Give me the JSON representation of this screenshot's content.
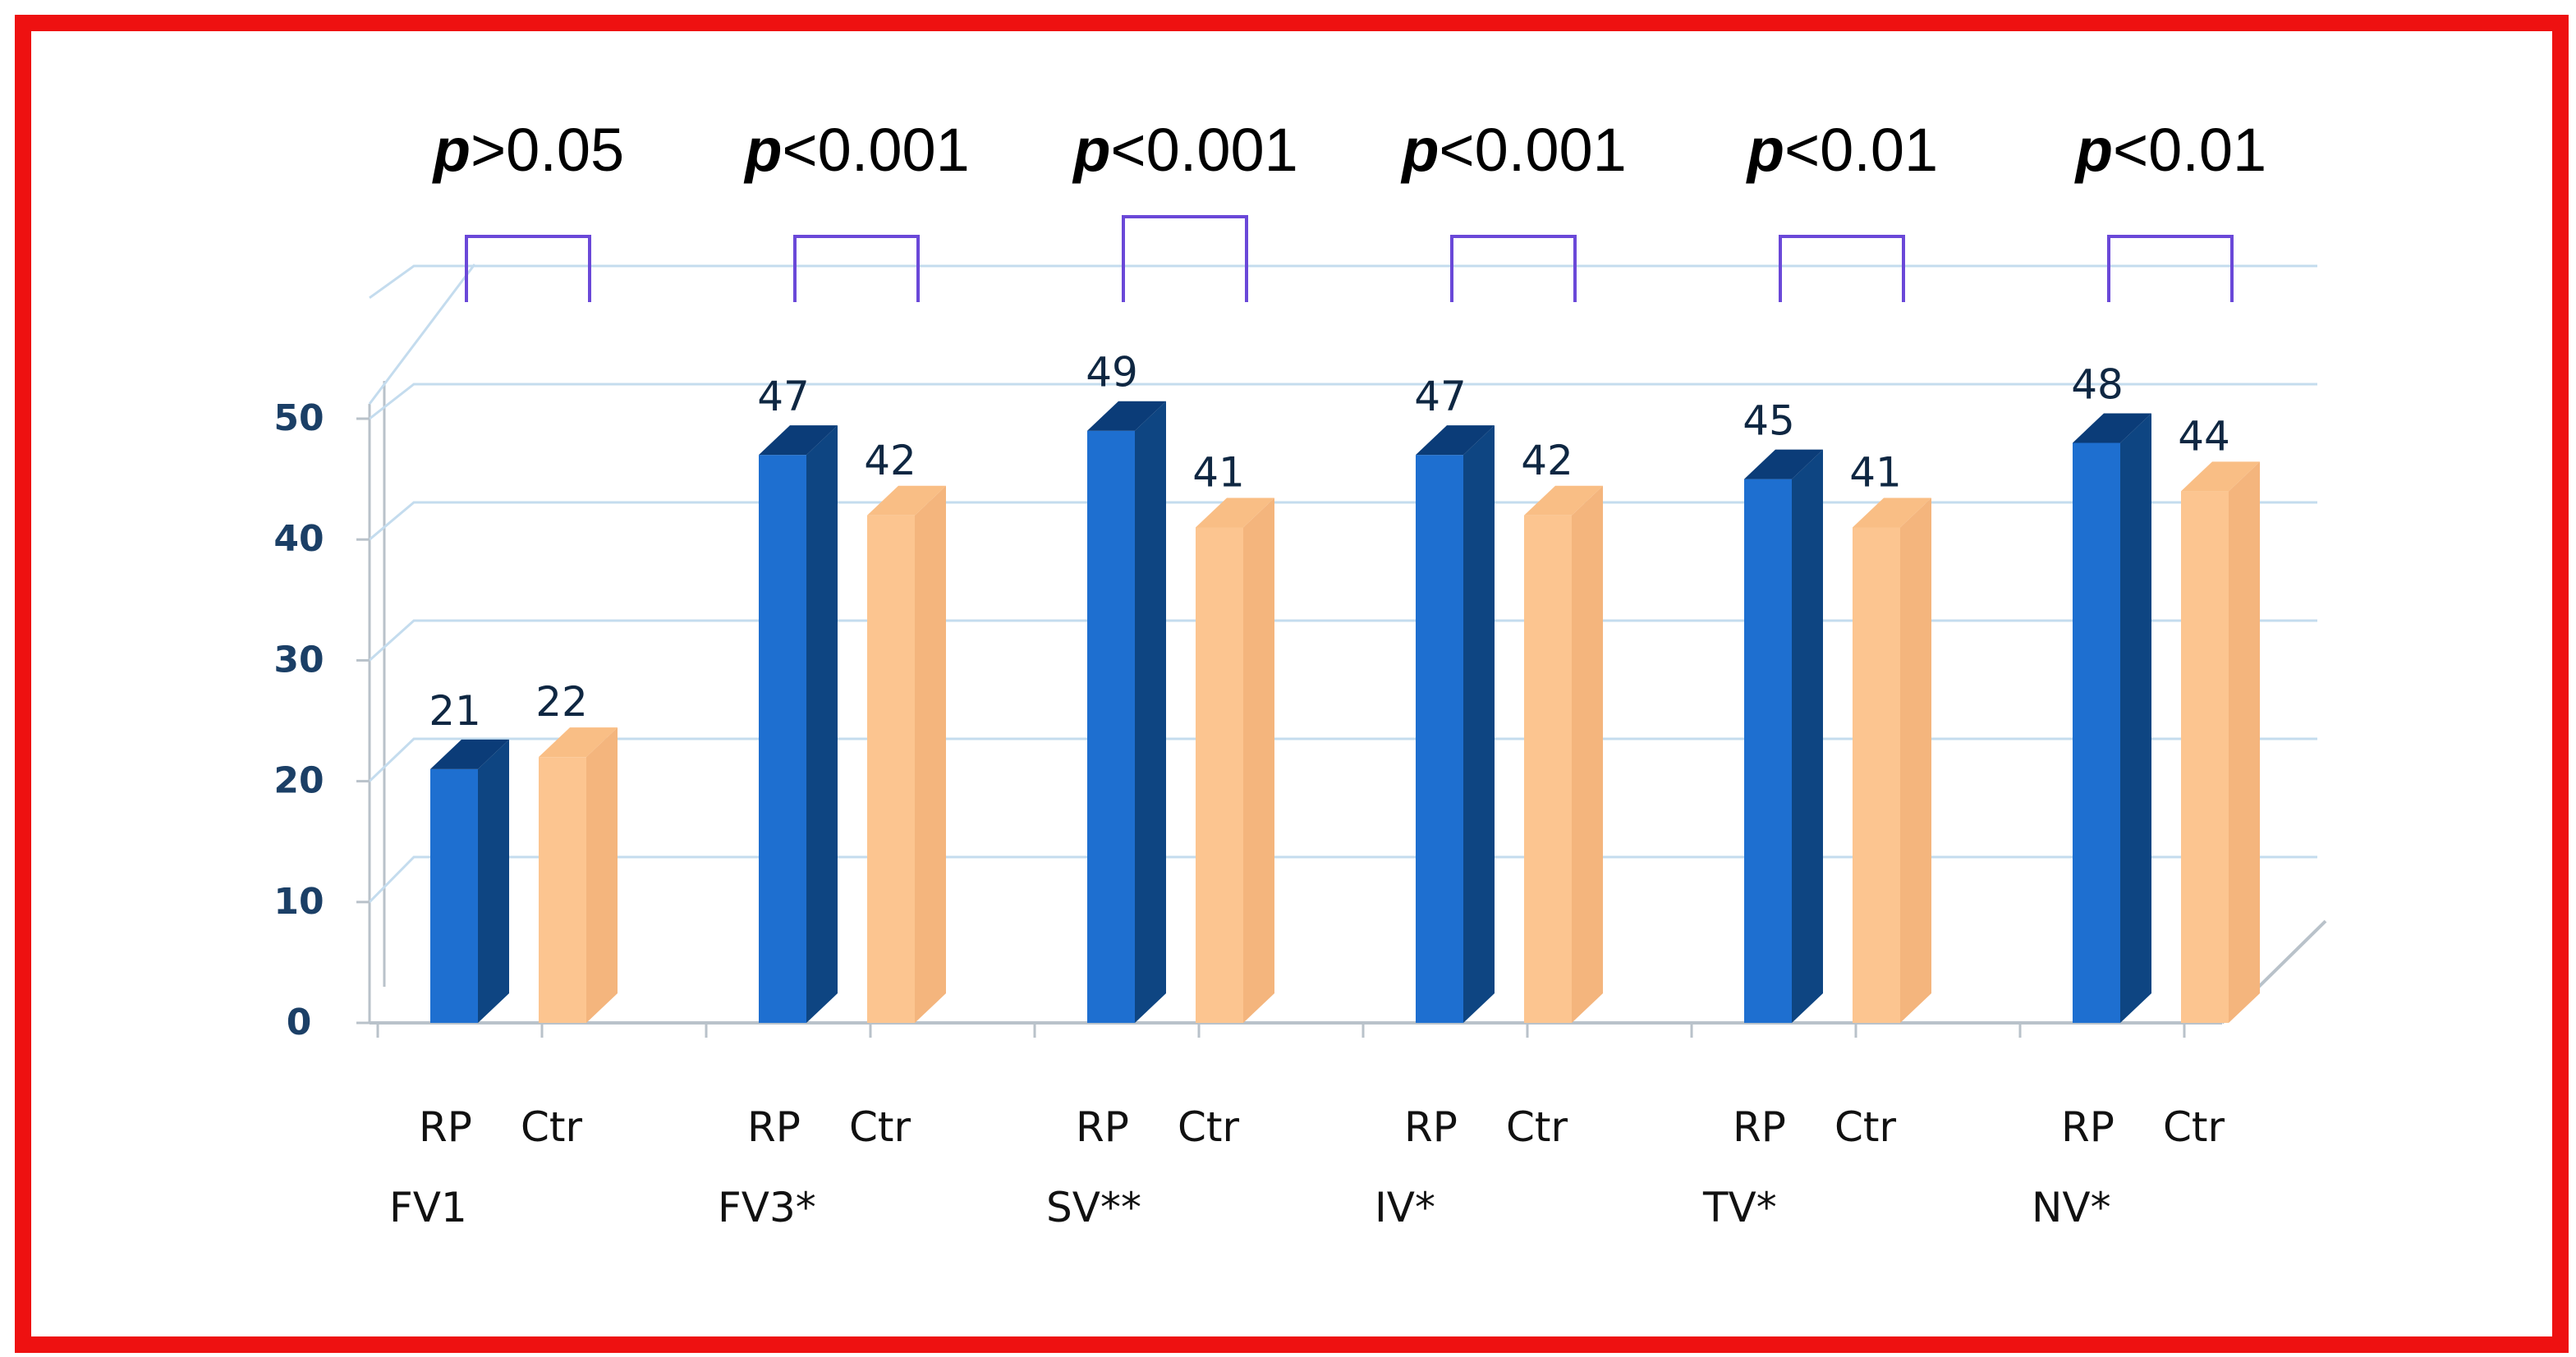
{
  "colors": {
    "frame": "#ee1111",
    "rp_front": "#1e6fd0",
    "rp_side": "#0e4582",
    "rp_top": "#0b3c78",
    "ctr_front": "#fcc590",
    "ctr_side": "#f4b57d",
    "ctr_top": "#f9be85",
    "bracket": "#6a48d8",
    "grid": "#c4dcee",
    "axis": "#b9c2ca",
    "tick_label": "#1b3f66",
    "value_label": "#0f2742"
  },
  "chart_data": {
    "type": "bar",
    "title": "",
    "xlabel": "",
    "ylabel": "",
    "ylim": [
      0,
      50
    ],
    "y_ticks": [
      "0",
      "10",
      "20",
      "30",
      "40",
      "50"
    ],
    "grid": true,
    "legend": "none",
    "style": "3d-column",
    "categories": [
      "FV1",
      "FV3*",
      "SV**",
      "IV*",
      "TV*",
      "NV*"
    ],
    "bar_labels": [
      "RP",
      "Ctr"
    ],
    "p_prefix": "p",
    "p_values": [
      ">0.05",
      "<0.001",
      "<0.001",
      "<0.001",
      "<0.01",
      "<0.01"
    ],
    "series": [
      {
        "name": "RP",
        "values": [
          21,
          47,
          49,
          47,
          45,
          48
        ]
      },
      {
        "name": "Ctr",
        "values": [
          22,
          42,
          41,
          42,
          41,
          44
        ]
      }
    ]
  }
}
